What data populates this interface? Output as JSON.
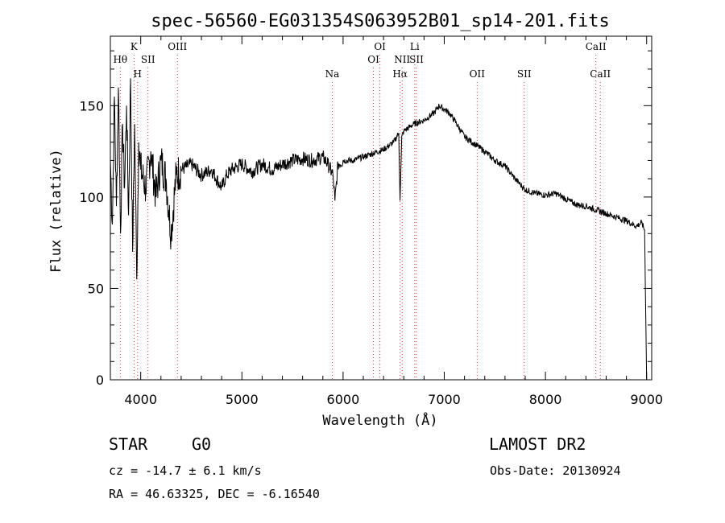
{
  "chart_data": {
    "type": "line",
    "title": "spec-56560-EG031354S063952B01_sp14-201.fits",
    "xlabel": "Wavelength (Å)",
    "ylabel": "Flux (relative)",
    "xlim": [
      3700,
      9050
    ],
    "ylim": [
      0,
      188
    ],
    "xticks": [
      4000,
      5000,
      6000,
      7000,
      8000,
      9000
    ],
    "yticks": [
      0,
      50,
      100,
      150
    ],
    "grid": false,
    "series": [
      {
        "x": [
          3700,
          3720,
          3740,
          3760,
          3780,
          3800,
          3820,
          3840,
          3860,
          3880,
          3900,
          3920,
          3940,
          3960,
          3980,
          4000,
          4050,
          4100,
          4150,
          4200,
          4250,
          4300,
          4350,
          4400,
          4500,
          4600,
          4700,
          4800,
          4850,
          4900,
          5000,
          5100,
          5200,
          5300,
          5400,
          5500,
          5600,
          5700,
          5800,
          5850,
          5900,
          5920,
          5950,
          6000,
          6100,
          6200,
          6300,
          6400,
          6500,
          6550,
          6563,
          6580,
          6600,
          6700,
          6800,
          6900,
          6950,
          7000,
          7050,
          7100,
          7200,
          7300,
          7400,
          7500,
          7600,
          7700,
          7750,
          7800,
          7900,
          8000,
          8100,
          8200,
          8300,
          8400,
          8500,
          8600,
          8700,
          8800,
          8900,
          8950,
          8980,
          9000
        ],
        "y": [
          120,
          85,
          155,
          95,
          160,
          80,
          140,
          105,
          150,
          90,
          165,
          70,
          140,
          55,
          130,
          115,
          105,
          125,
          100,
          120,
          110,
          80,
          112,
          115,
          118,
          112,
          115,
          105,
          112,
          115,
          118,
          114,
          118,
          115,
          118,
          120,
          121,
          120,
          122,
          118,
          112,
          98,
          118,
          120,
          120,
          122,
          124,
          126,
          130,
          135,
          98,
          133,
          136,
          140,
          142,
          146,
          150,
          148,
          146,
          142,
          133,
          129,
          125,
          120,
          117,
          110,
          107,
          104,
          102,
          101,
          102,
          99,
          96,
          95,
          93,
          91,
          89,
          87,
          84,
          86,
          82,
          0
        ]
      }
    ],
    "lines": [
      {
        "name": "Hθ",
        "x": 3798,
        "row": 1
      },
      {
        "name": "K",
        "x": 3934,
        "row": 0
      },
      {
        "name": "H",
        "x": 3969,
        "row": 2
      },
      {
        "name": "SII",
        "x": 4072,
        "row": 1
      },
      {
        "name": "OIII",
        "x": 4363,
        "row": 0
      },
      {
        "name": "Na",
        "x": 5893,
        "row": 2
      },
      {
        "name": "OI",
        "x": 6300,
        "row": 1
      },
      {
        "name": "OI",
        "x": 6364,
        "row": 0
      },
      {
        "name": "Hα",
        "x": 6563,
        "row": 2
      },
      {
        "name": "NII",
        "x": 6584,
        "row": 1
      },
      {
        "name": "Li",
        "x": 6708,
        "row": 0
      },
      {
        "name": "SII",
        "x": 6725,
        "row": 1
      },
      {
        "name": "OII",
        "x": 7325,
        "row": 2
      },
      {
        "name": "SII",
        "x": 7790,
        "row": 2
      },
      {
        "name": "CaII",
        "x": 8498,
        "row": 0
      },
      {
        "name": "CaII",
        "x": 8542,
        "row": 2
      }
    ]
  },
  "info": {
    "object_class": "STAR",
    "subclass": "G0",
    "survey": "LAMOST DR2",
    "cz": "cz = -14.7 ± 6.1 km/s",
    "obs_date": "Obs-Date: 20130924",
    "coords": "RA =  46.63325, DEC =  -6.16540"
  }
}
